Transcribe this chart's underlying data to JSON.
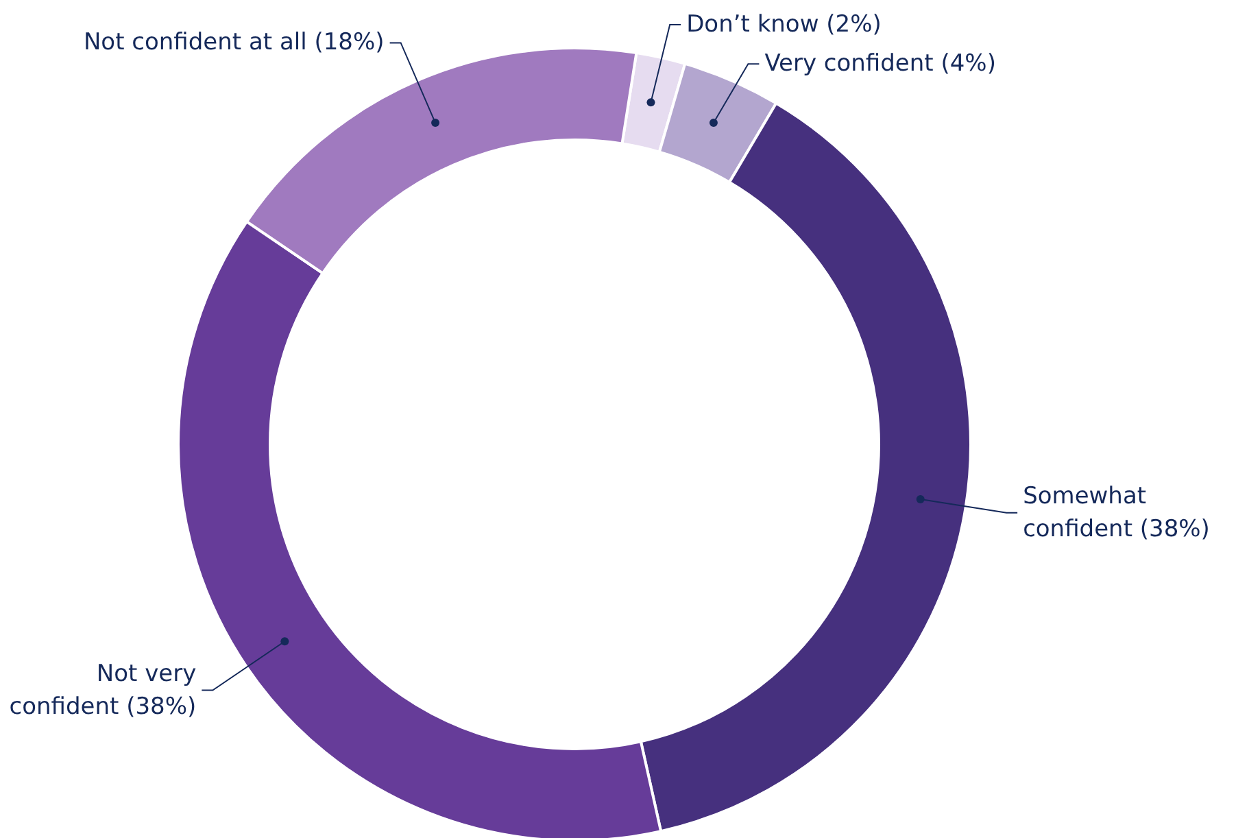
{
  "chart_data": {
    "type": "donut",
    "categories": [
      "Don’t know",
      "Very confident",
      "Somewhat confident",
      "Not very confident",
      "Not confident at all"
    ],
    "values": [
      2,
      4,
      38,
      38,
      18
    ],
    "value_labels": [
      "(2%)",
      "(4%)",
      "(38%)",
      "(38%)",
      "(18%)"
    ],
    "colors": [
      "#e6dcf0",
      "#b3a6cf",
      "#46307e",
      "#663c99",
      "#a07abf"
    ]
  }
}
